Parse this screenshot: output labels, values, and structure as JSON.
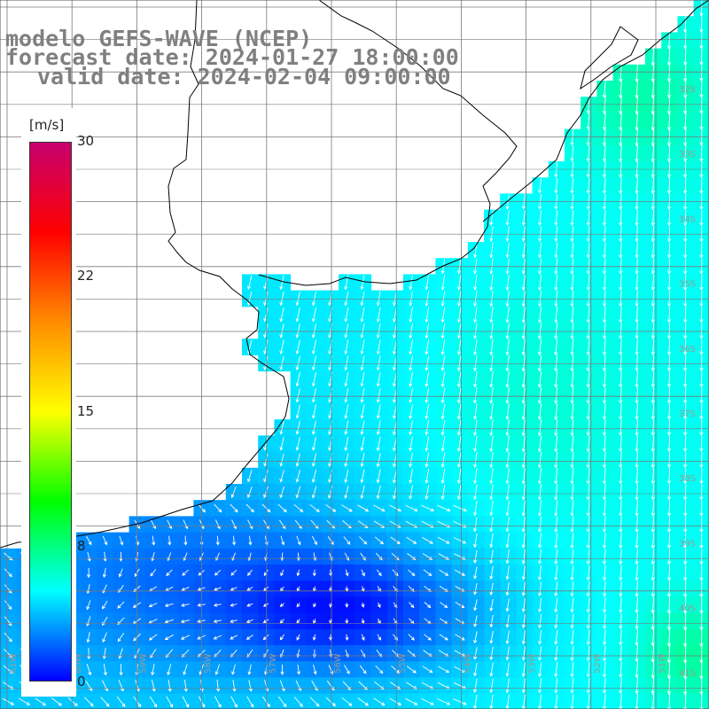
{
  "header": {
    "line1": "modelo GEFS-WAVE (NCEP)",
    "line2": "forecast date: 2024-01-27 18:00:00",
    "line3": "valid date: 2024-02-04 09:00:00"
  },
  "colorbar": {
    "unit": "[m/s]",
    "ticks": [
      "30",
      "22",
      "15",
      "8",
      "0"
    ],
    "values": [
      30,
      22,
      15,
      8,
      0
    ],
    "colors": [
      "#c8006e",
      "#ff0000",
      "#ff8c00",
      "#ffff00",
      "#00ff00",
      "#00ffff",
      "#0000ff"
    ]
  },
  "right_axis_labels": [
    "32S",
    "33S",
    "34S",
    "35S",
    "36S",
    "37S",
    "38S",
    "39S",
    "40S",
    "41S"
  ],
  "bottom_axis_labels": [
    "61W",
    "60W",
    "59W",
    "58W",
    "57W",
    "56W",
    "55W",
    "54W",
    "53W",
    "52W",
    "51W"
  ],
  "map": {
    "field": "wind speed",
    "land_color": "#ffffff",
    "grid_color": "#7a7a7a",
    "coast_color": "#000000",
    "arrow_color": "#ffffff"
  }
}
